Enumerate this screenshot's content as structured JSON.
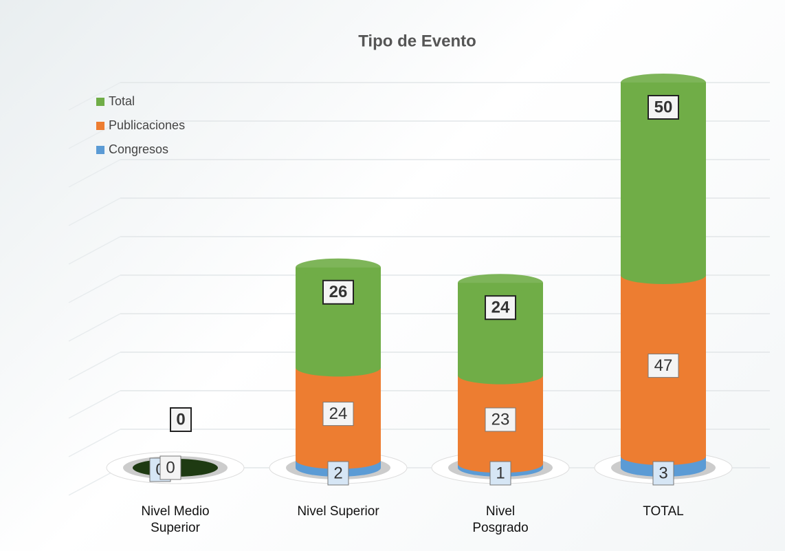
{
  "chart_data": {
    "type": "bar3d-stacked",
    "title": "Tipo de Evento",
    "categories": [
      "Nivel Medio Superior",
      "Nivel Superior",
      "Nivel Posgrado",
      "TOTAL"
    ],
    "series": [
      {
        "name": "Congresos",
        "color": "#5b9bd5",
        "values": [
          0,
          2,
          1,
          3
        ]
      },
      {
        "name": "Publicaciones",
        "color": "#ed7d31",
        "values": [
          0,
          24,
          23,
          47
        ]
      },
      {
        "name": "Total",
        "color": "#70ad47",
        "values": [
          0,
          26,
          24,
          50
        ]
      }
    ],
    "ylim": [
      0,
      105
    ],
    "yticks": [
      0,
      10,
      20,
      30,
      40,
      50,
      60,
      70,
      80,
      90,
      100
    ],
    "grid": true
  }
}
